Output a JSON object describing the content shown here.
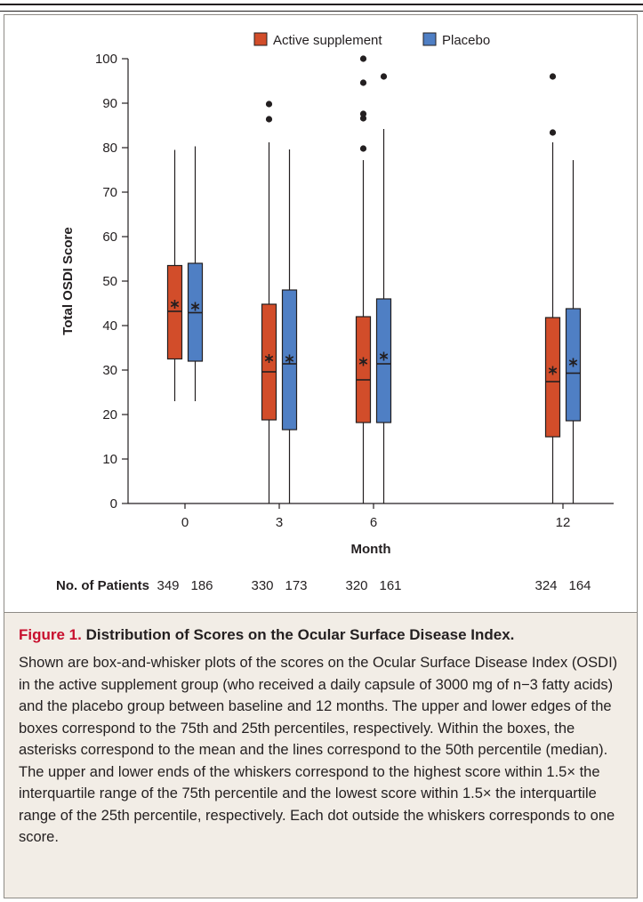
{
  "chart_data": {
    "type": "box",
    "title": "",
    "xlabel": "Month",
    "ylabel": "Total OSDI Score",
    "ylim": [
      0,
      100
    ],
    "yticks": [
      0,
      10,
      20,
      30,
      40,
      50,
      60,
      70,
      80,
      90,
      100
    ],
    "categories": [
      "0",
      "3",
      "6",
      "12"
    ],
    "legend_position": "top-center",
    "series": [
      {
        "name": "Active supplement",
        "color": "#d24d2a",
        "boxes": [
          {
            "month": "0",
            "whisker_low": 23,
            "q1": 32.5,
            "median": 43.2,
            "q3": 53.5,
            "whisker_high": 79.5,
            "mean": 44.8,
            "outliers": []
          },
          {
            "month": "3",
            "whisker_low": 0,
            "q1": 18.8,
            "median": 29.6,
            "q3": 44.8,
            "whisker_high": 81.2,
            "mean": 32.6,
            "outliers": [
              86.4,
              89.8
            ]
          },
          {
            "month": "6",
            "whisker_low": 0,
            "q1": 18.2,
            "median": 27.8,
            "q3": 42.0,
            "whisker_high": 77.2,
            "mean": 31.9,
            "outliers": [
              79.8,
              86.6,
              87.6,
              94.6,
              100
            ]
          },
          {
            "month": "12",
            "whisker_low": 0,
            "q1": 15.0,
            "median": 27.4,
            "q3": 41.8,
            "whisker_high": 81.2,
            "mean": 29.9,
            "outliers": [
              83.4,
              96.0
            ]
          }
        ]
      },
      {
        "name": "Placebo",
        "color": "#4f7fc4",
        "boxes": [
          {
            "month": "0",
            "whisker_low": 23,
            "q1": 32.0,
            "median": 42.9,
            "q3": 54.0,
            "whisker_high": 80.3,
            "mean": 44.3,
            "outliers": []
          },
          {
            "month": "3",
            "whisker_low": 0,
            "q1": 16.6,
            "median": 31.4,
            "q3": 48.0,
            "whisker_high": 79.6,
            "mean": 32.5,
            "outliers": []
          },
          {
            "month": "6",
            "whisker_low": 0,
            "q1": 18.2,
            "median": 31.4,
            "q3": 46.0,
            "whisker_high": 84.2,
            "mean": 33.1,
            "outliers": [
              96.0
            ]
          },
          {
            "month": "12",
            "whisker_low": 0,
            "q1": 18.6,
            "median": 29.3,
            "q3": 43.8,
            "whisker_high": 77.2,
            "mean": 31.7,
            "outliers": []
          }
        ]
      }
    ],
    "patients_label": "No. of Patients",
    "patients": [
      {
        "month": "0",
        "active": "349",
        "placebo": "186"
      },
      {
        "month": "3",
        "active": "330",
        "placebo": "173"
      },
      {
        "month": "6",
        "active": "320",
        "placebo": "161"
      },
      {
        "month": "12",
        "active": "324",
        "placebo": "164"
      }
    ]
  },
  "caption": {
    "label": "Figure 1.",
    "title": "Distribution of Scores on the Ocular Surface Disease Index.",
    "body": "Shown are box-and-whisker plots of the scores on the Ocular Surface Disease Index (OSDI) in the active supplement group (who received a daily capsule of 3000 mg of n−3 fatty acids) and the placebo group between baseline and 12 months. The upper and lower edges of the boxes correspond to the 75th and 25th percentiles, respectively. Within the boxes, the asterisks correspond to the mean and the lines correspond to the 50th percentile (median). The upper and lower ends of the whiskers correspond to the highest score within 1.5× the interquartile range of the 75th percentile and the lowest score within 1.5× the interquartile range of the 25th percentile, respectively. Each dot outside the whiskers corresponds to one score."
  }
}
